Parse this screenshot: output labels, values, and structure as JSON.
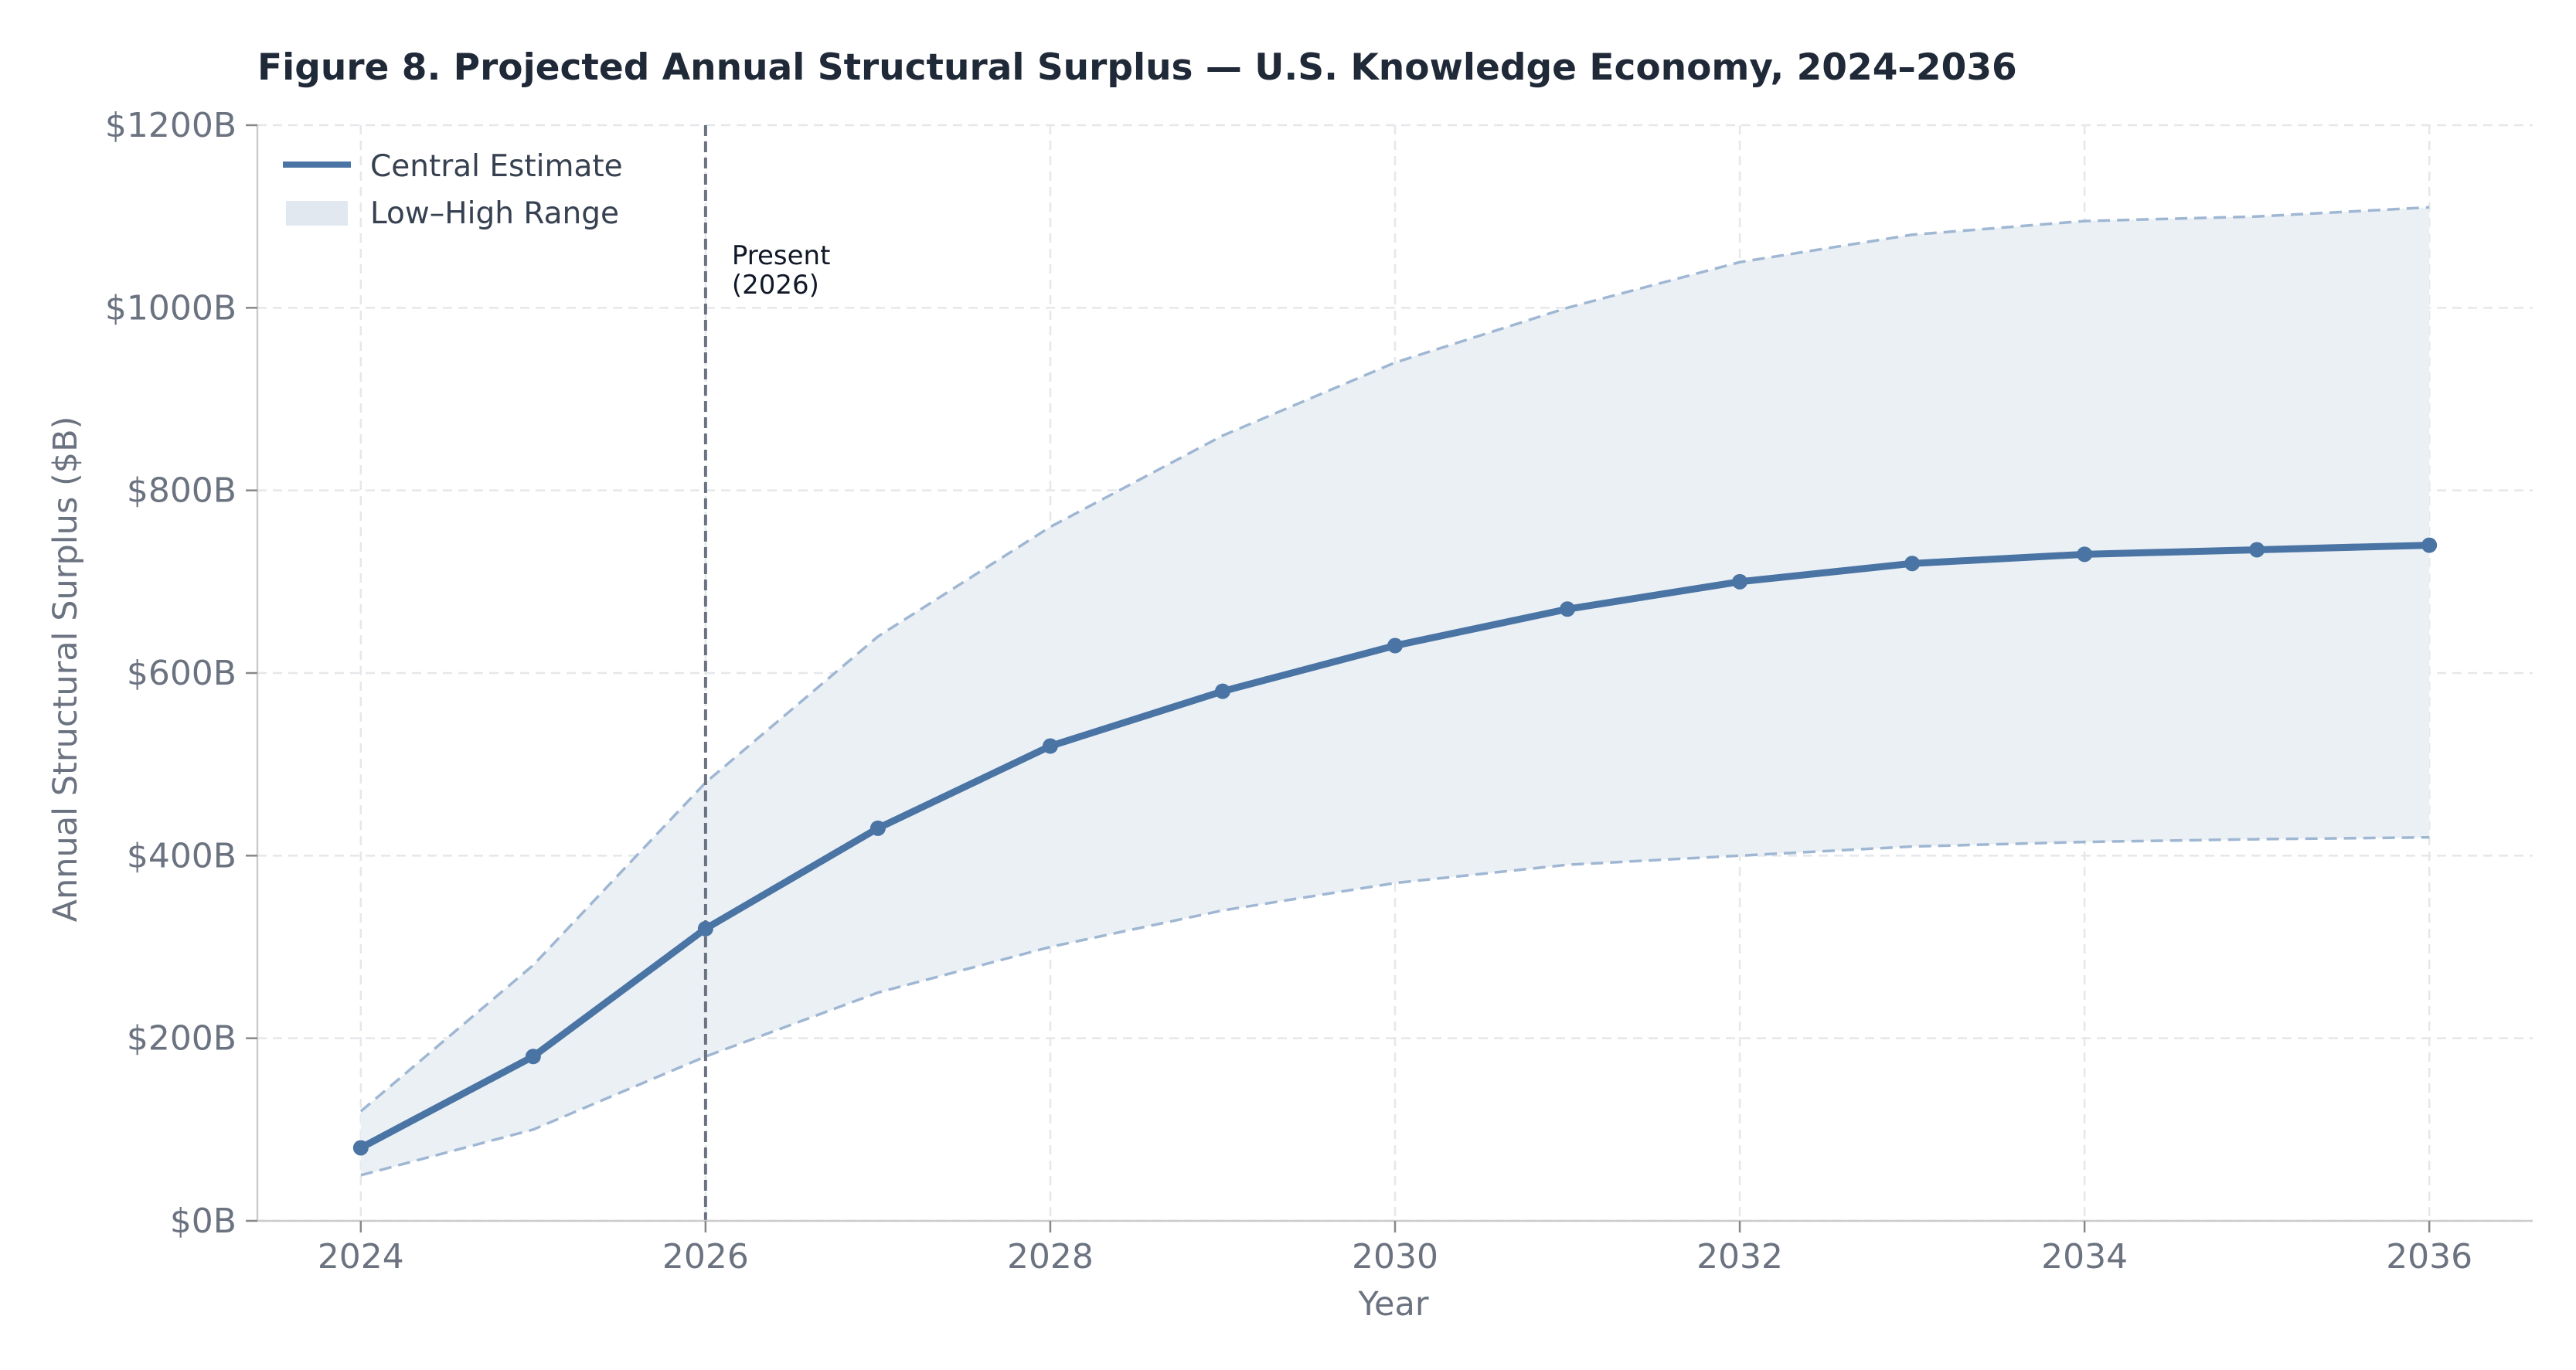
{
  "chart_data": {
    "type": "line",
    "title": "Figure 8.  Projected Annual Structural Surplus — U.S. Knowledge Economy, 2024–2036",
    "xlabel": "Year",
    "ylabel": "Annual Structural Surplus ($B)",
    "xlim": [
      2023.4,
      2036.6
    ],
    "ylim": [
      0,
      1200
    ],
    "x_ticks": [
      2024,
      2026,
      2028,
      2030,
      2032,
      2034,
      2036
    ],
    "y_ticks": [
      0,
      200,
      400,
      600,
      800,
      1000,
      1200
    ],
    "y_tick_labels": [
      "$0B",
      "$200B",
      "$400B",
      "$600B",
      "$800B",
      "$1000B",
      "$1200B"
    ],
    "x": [
      2024,
      2025,
      2026,
      2027,
      2028,
      2029,
      2030,
      2031,
      2032,
      2033,
      2034,
      2035,
      2036
    ],
    "series": [
      {
        "name": "Central Estimate",
        "values": [
          80,
          180,
          320,
          430,
          520,
          580,
          630,
          670,
          700,
          720,
          730,
          735,
          740
        ]
      }
    ],
    "band": {
      "name": "Low–High Range",
      "low": [
        50,
        100,
        180,
        250,
        300,
        340,
        370,
        390,
        400,
        410,
        415,
        418,
        420
      ],
      "high": [
        120,
        280,
        480,
        640,
        760,
        860,
        940,
        1000,
        1050,
        1080,
        1095,
        1100,
        1110
      ]
    },
    "annotation": {
      "x": 2026,
      "lines": [
        "Present",
        "(2026)"
      ]
    },
    "grid": true,
    "legend": "top-left",
    "colors": {
      "central": "#4a74a4",
      "band_fill": "#ebf0f5",
      "band_edge": "#9fb7d3",
      "marker_line": "#6b7280",
      "grid": "#e5e7eb",
      "axis": "#cccccc"
    }
  }
}
